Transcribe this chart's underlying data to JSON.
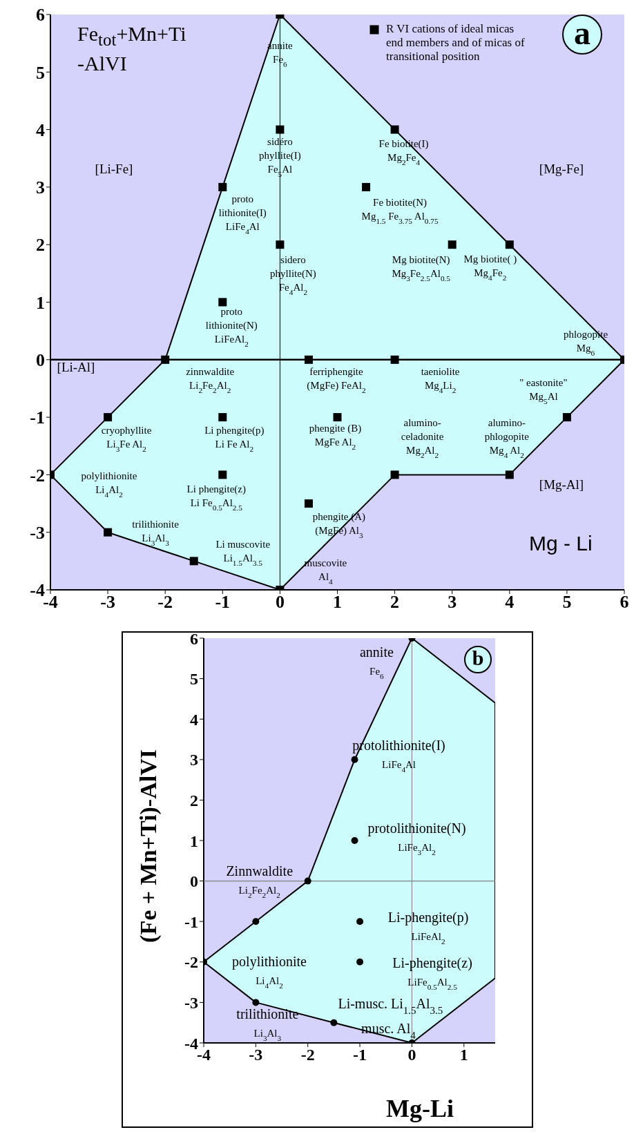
{
  "chart_data": [
    {
      "type": "scatter",
      "xlabel": "Mg - Li",
      "ylabel": "Fe$_{tot}$+Mn+Ti\n-AlVI",
      "xlim": [
        -4,
        6
      ],
      "ylim": [
        -4,
        6
      ],
      "xticks": [
        -4,
        -3,
        -2,
        -1,
        0,
        1,
        2,
        3,
        4,
        5,
        6
      ],
      "yticks": [
        -4,
        -3,
        -2,
        -1,
        0,
        1,
        2,
        3,
        4,
        5,
        6
      ],
      "legend": "top right",
      "annotations": [
        "a",
        "[Li-Fe]",
        "[Mg-Fe]",
        "[Li-Al]",
        "[Mg-Al]",
        {
          "text": "annite\nFe$_{6}$",
          "x": 0,
          "y": 6
        },
        {
          "text": "sidéro\nphyllite(I)\nFe$_{5}$Al",
          "x": 0,
          "y": 4
        },
        {
          "text": "Fe biotite(I)\nMg$_{2}$Fe$_{4}$",
          "x": 2,
          "y": 4
        },
        {
          "text": "proto\nlithionite(I)\nLiFe$_{4}$Al",
          "x": -1,
          "y": 3
        },
        {
          "text": "Fe biotite(N)\nMg$_{1.5}$ Fe$_{3.75}$ Al$_{0.75}$",
          "x": 1.5,
          "y": 3
        },
        {
          "text": "sidero\nphyllite(N)\nFe$_{4}$Al$_{2}$",
          "x": 0,
          "y": 2
        },
        {
          "text": "Mg biotite(N)\nMg$_{3}$Fe$_{2.5}$Al$_{0.5}$",
          "x": 3,
          "y": 2
        },
        {
          "text": "Mg biotite( )\nMg$_{4}$Fe$_{2}$",
          "x": 4,
          "y": 2
        },
        {
          "text": "proto\nlithionite(N)\nLiFeAl$_{2}$",
          "x": -1,
          "y": 1
        },
        {
          "text": "phlogopite\nMg$_{6}$",
          "x": 6,
          "y": 0
        },
        {
          "text": "zinnwaldite\nLi$_{2}$Fe$_{2}$Al$_{2}$",
          "x": -2,
          "y": 0
        },
        {
          "text": "ferriphengite\n(MgFe) FeAl$_{2}$",
          "x": 0.5,
          "y": 0
        },
        {
          "text": "taeniolite\nMg$_{4}$Li$_{2}$",
          "x": 2,
          "y": 0
        },
        {
          "text": "\" eastonite\"\nMg$_{5}$Al",
          "x": 5,
          "y": -1
        },
        {
          "text": "cryophyllite\nLi$_{3}$Fe Al$_{2}$",
          "x": -3,
          "y": -1
        },
        {
          "text": "Li phengite(p)\nLi Fe Al$_{2}$",
          "x": -1,
          "y": -1
        },
        {
          "text": "phengite (B)\nMgFe Al$_{2}$",
          "x": 1,
          "y": -1
        },
        {
          "text": "alumino-\nceladonite\nMg$_{2}$Al$_{2}$",
          "x": 2,
          "y": -2
        },
        {
          "text": "alumino-\nphlogopite\nMg$_{4}$ Al$_{2}$",
          "x": 4,
          "y": -2
        },
        {
          "text": "polylithionite\nLi$_{4}$Al$_{2}$",
          "x": -4,
          "y": -2
        },
        {
          "text": "Li phengite(z)\nLi Fe$_{0.5}$Al$_{2.5}$",
          "x": -1,
          "y": -2
        },
        {
          "text": "phengite (A)\n(MgFe) Al$_{3}$",
          "x": 0.5,
          "y": -2.5
        },
        {
          "text": "trilithionite\nLi$_{3}$Al$_{3}$",
          "x": -3,
          "y": -3
        },
        {
          "text": "Li muscovite\nLi$_{1.5}$Al$_{3.5}$",
          "x": -1.5,
          "y": -3.5
        },
        {
          "text": "muscovite\nAl$_{4}$",
          "x": 0,
          "y": -4
        }
      ],
      "ref_lines": [
        {
          "axis": "x",
          "value": 0,
          "color": "#000000"
        },
        {
          "axis": "y",
          "value": 0,
          "color": "#000000"
        }
      ],
      "series": [
        {
          "type": "area",
          "marker": "none",
          "color": "#ccfcfc",
          "x": [
            0,
            2,
            4,
            6,
            5,
            4,
            2,
            0,
            -1.5,
            -3,
            -4,
            -3,
            -2,
            -1,
            0
          ],
          "values": [
            6,
            4,
            2,
            0,
            -1,
            -2,
            -2,
            -4,
            -3.5,
            -3,
            -2,
            -1,
            0,
            3,
            6
          ]
        },
        {
          "name": "R VI cations of ideal micas end members and of micas of transitional position",
          "marker": "square",
          "color": "#000000",
          "x": [
            0,
            0,
            2,
            -1,
            1.5,
            0,
            3,
            4,
            -1,
            6,
            -2,
            0.5,
            2,
            5,
            -3,
            -1,
            1,
            2,
            4,
            -4,
            -1,
            0.5,
            -3,
            -1.5,
            0
          ],
          "values": [
            6,
            4,
            4,
            3,
            3,
            2,
            2,
            2,
            1,
            0,
            0,
            0,
            0,
            -1,
            -1,
            -1,
            -1,
            -2,
            -2,
            -2,
            -2,
            -2.5,
            -3,
            -3.5,
            -4
          ]
        }
      ]
    },
    {
      "type": "scatter",
      "xlabel": "Mg-Li",
      "ylabel": "(Fe + Mn+Ti)-AlVI",
      "xlim": [
        -4,
        1.6
      ],
      "ylim": [
        -4,
        6
      ],
      "xticks": [
        -4,
        -3,
        -2,
        -1,
        0,
        1
      ],
      "yticks": [
        -4,
        -3,
        -2,
        -1,
        0,
        1,
        2,
        3,
        4,
        5,
        6
      ],
      "annotations": [
        "b",
        {
          "text": "annite\nFe$_{6}$",
          "x": 0,
          "y": 6
        },
        {
          "text": "protolithionite(I)\nLiFe$_{4}$Al",
          "x": -1.1,
          "y": 3
        },
        {
          "text": "protolithionite(N)\nLiFe$_{3}$Al$_{2}$",
          "x": -1.1,
          "y": 1
        },
        {
          "text": "Zinnwaldite\nLi$_{2}$Fe$_{2}$Al$_{2}$",
          "x": -2,
          "y": 0
        },
        {
          "text": "Li-phengite(p)\nLiFeAl$_{2}$",
          "x": -1,
          "y": -1
        },
        {
          "text": "Li-phengite(z)\nLiFe$_{0.5}$Al$_{2.5}$",
          "x": -1,
          "y": -2
        },
        {
          "text": "polylithionite\nLi$_{4}$Al$_{2}$",
          "x": -4,
          "y": -2
        },
        {
          "text": "trilithionite\nLi$_{3}$Al$_{3}$",
          "x": -3,
          "y": -3
        },
        {
          "text": "Li-musc. Li$_{1.5}$Al$_{3.5}$",
          "x": -1.5,
          "y": -3.5
        },
        {
          "text": "musc. Al$_{4}$",
          "x": 0,
          "y": -4
        }
      ],
      "ref_lines": [
        {
          "axis": "x",
          "value": 0,
          "color": "#808080"
        },
        {
          "axis": "y",
          "value": 0,
          "color": "#808080"
        }
      ],
      "series": [
        {
          "type": "area",
          "marker": "none",
          "color": "#ccfcfc",
          "x": [
            0,
            1.6,
            1.6,
            0,
            -1.5,
            -3,
            -4,
            -3,
            -2,
            -1.1,
            0
          ],
          "values": [
            6,
            4.4,
            -2.4,
            -4,
            -3.5,
            -3,
            -2,
            -1,
            0,
            3,
            6
          ]
        },
        {
          "marker": "circle",
          "color": "#000000",
          "x": [
            0,
            -1.1,
            -1.1,
            -2,
            -3,
            -1,
            -1,
            -4,
            -3,
            -1.5,
            0
          ],
          "values": [
            6,
            3,
            1,
            0,
            -1,
            -1,
            -2,
            -2,
            -3,
            -3.5,
            -4
          ]
        }
      ]
    }
  ]
}
